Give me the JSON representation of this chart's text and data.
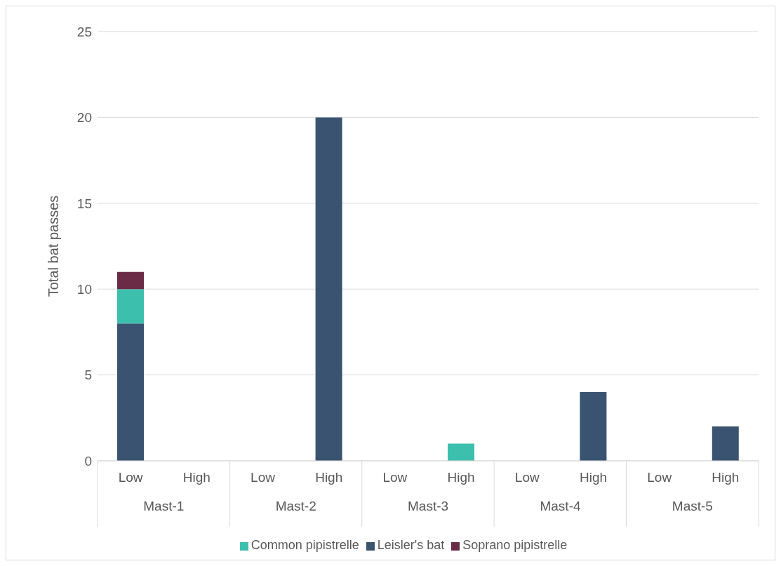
{
  "chart_data": {
    "type": "bar",
    "stacked": true,
    "ylabel": "Total bat passes",
    "categories": [
      "Low",
      "High",
      "Low",
      "High",
      "Low",
      "High",
      "Low",
      "High",
      "Low",
      "High"
    ],
    "annotations": [
      "Mast-1",
      "Mast-2",
      "Mast-3",
      "Mast-4",
      "Mast-5"
    ],
    "series": [
      {
        "name": "Leisler's bat",
        "color": "#3a5371",
        "values": [
          8,
          0,
          0,
          20,
          0,
          0,
          0,
          4,
          0,
          2
        ]
      },
      {
        "name": "Common pipistrelle",
        "color": "#3dbfae",
        "values": [
          2,
          0,
          0,
          0,
          0,
          1,
          0,
          0,
          0,
          0
        ]
      },
      {
        "name": "Soprano pipistrelle",
        "color": "#6b2b46",
        "values": [
          1,
          0,
          0,
          0,
          0,
          0,
          0,
          0,
          0,
          0
        ]
      }
    ],
    "ylim": [
      0,
      25
    ],
    "yticks": [
      0,
      5,
      10,
      15,
      20,
      25
    ],
    "grid": "y",
    "legend": "bottom"
  }
}
